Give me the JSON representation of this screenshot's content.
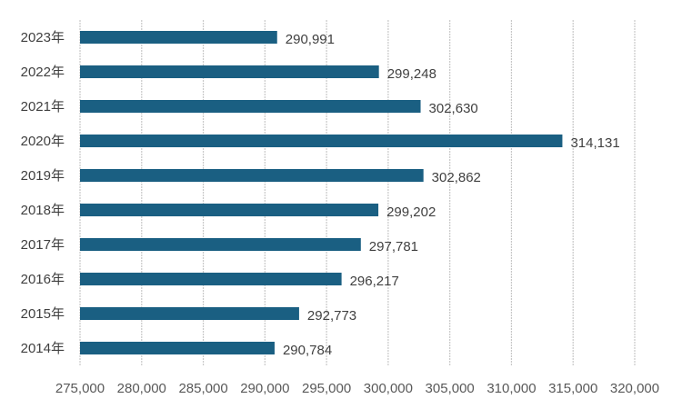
{
  "chart_data": {
    "type": "bar",
    "orientation": "horizontal",
    "title": "",
    "xlabel": "",
    "ylabel": "",
    "categories": [
      "2023年",
      "2022年",
      "2021年",
      "2020年",
      "2019年",
      "2018年",
      "2017年",
      "2016年",
      "2015年",
      "2014年"
    ],
    "values": [
      290991,
      299248,
      302630,
      314131,
      302862,
      299202,
      297781,
      296217,
      292773,
      290784
    ],
    "data_labels": [
      "290,991",
      "299,248",
      "302,630",
      "314,131",
      "302,862",
      "299,202",
      "297,781",
      "296,217",
      "292,773",
      "290,784"
    ],
    "xlim": [
      275000,
      320000
    ],
    "x_ticks": [
      275000,
      280000,
      285000,
      290000,
      295000,
      300000,
      305000,
      310000,
      315000,
      320000
    ],
    "x_tick_labels": [
      "275,000",
      "280,000",
      "285,000",
      "290,000",
      "295,000",
      "300,000",
      "305,000",
      "310,000",
      "315,000",
      "320,000"
    ],
    "grid": "vertical",
    "legend": "none",
    "bar_color": "#1a5f82"
  }
}
